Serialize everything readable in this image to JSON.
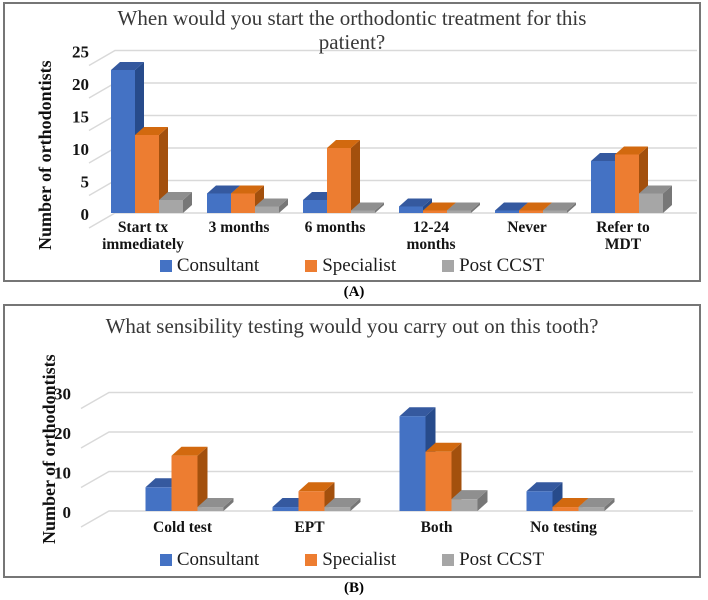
{
  "panels": [
    {
      "caption": "(A)"
    },
    {
      "caption": "(B)"
    }
  ],
  "colors": {
    "consultant": "#4472C4",
    "specialist": "#ED7D31",
    "post_ccst": "#A6A6A6",
    "gridline": "#D9D9D9",
    "panel_border": "#767676",
    "title_text": "#383838",
    "axis_text": "#141414"
  },
  "chart_data": [
    {
      "type": "bar",
      "style": "3d-clustered-column",
      "title": "When would you start the orthodontic treatment for this patient?",
      "title_lines": [
        "When would you start the orthodontic treatment for this",
        "patient?"
      ],
      "ylabel": "Number of orthodontists",
      "xlabel": "",
      "categories": [
        "Start tx\nimmediately",
        "3 months",
        "6 months",
        "12-24\nmonths",
        "Never",
        "Refer to\nMDT"
      ],
      "series": [
        {
          "name": "Consultant",
          "color": "#4472C4",
          "values": [
            22,
            3,
            2,
            1,
            0,
            8
          ]
        },
        {
          "name": "Specialist",
          "color": "#ED7D31",
          "values": [
            12,
            3,
            10,
            0,
            0,
            9
          ]
        },
        {
          "name": "Post CCST",
          "color": "#A6A6A6",
          "values": [
            2,
            1,
            0,
            0,
            0,
            3
          ]
        }
      ],
      "yticks": [
        0,
        5,
        10,
        15,
        20,
        25
      ],
      "ylim": [
        0,
        25
      ],
      "grid": true,
      "legend_position": "bottom"
    },
    {
      "type": "bar",
      "style": "3d-clustered-column",
      "title": "What sensibility testing would you carry out on this tooth?",
      "title_lines": [
        "What sensibility testing would you carry out on this tooth?"
      ],
      "ylabel": "Number of orthodontists",
      "xlabel": "",
      "categories": [
        "Cold test",
        "EPT",
        "Both",
        "No testing"
      ],
      "series": [
        {
          "name": "Consultant",
          "color": "#4472C4",
          "values": [
            6,
            1,
            24,
            5
          ]
        },
        {
          "name": "Specialist",
          "color": "#ED7D31",
          "values": [
            14,
            5,
            15,
            1
          ]
        },
        {
          "name": "Post CCST",
          "color": "#A6A6A6",
          "values": [
            1,
            1,
            3,
            1
          ]
        }
      ],
      "yticks": [
        0,
        10,
        20,
        30
      ],
      "ylim": [
        0,
        30
      ],
      "grid": true,
      "legend_position": "bottom"
    }
  ]
}
